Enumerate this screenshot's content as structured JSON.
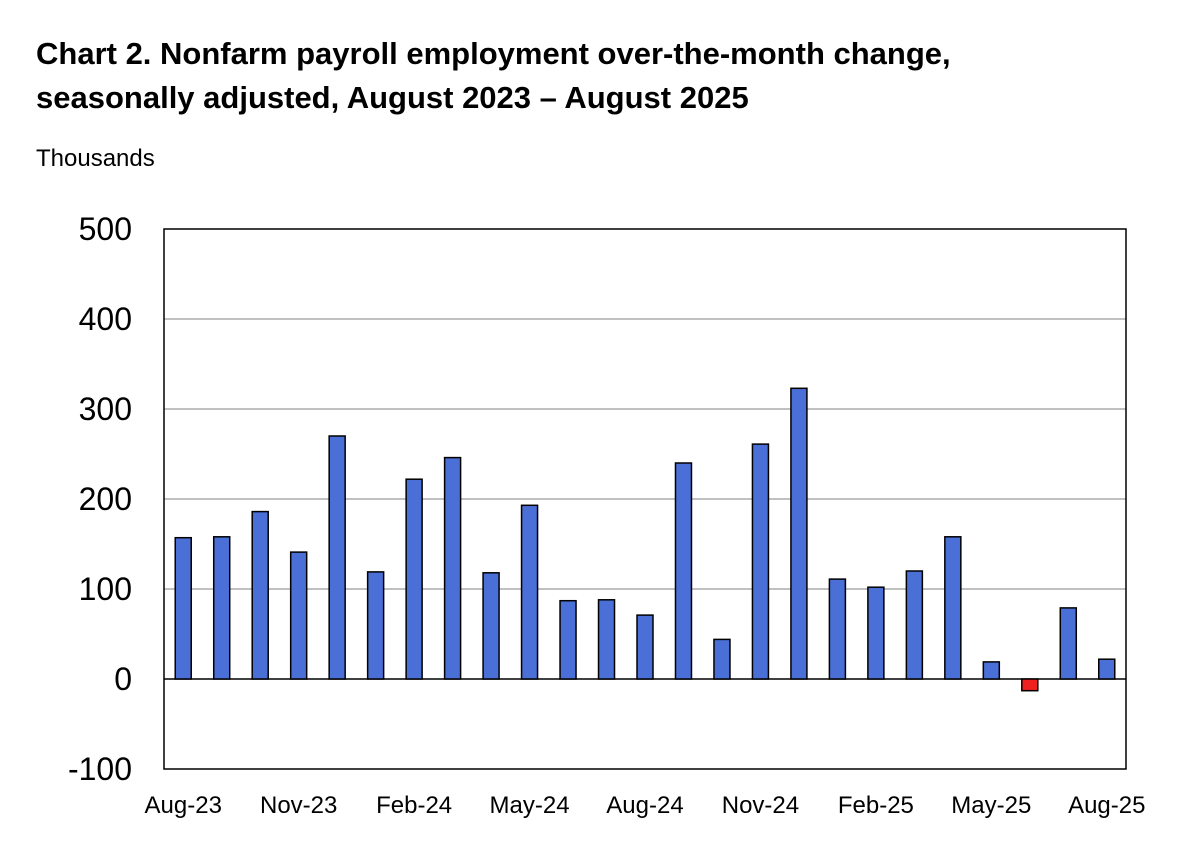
{
  "chart_data": {
    "type": "bar",
    "title_line1": "Chart 2. Nonfarm payroll employment over-the-month change,",
    "title_line2": "seasonally adjusted, August 2023 – August 2025",
    "ylabel": "Thousands",
    "xlabel": "",
    "ylim": [
      -100,
      500
    ],
    "yticks": [
      -100,
      0,
      100,
      200,
      300,
      400,
      500
    ],
    "grid": true,
    "categories": [
      "Aug-23",
      "Sep-23",
      "Oct-23",
      "Nov-23",
      "Dec-23",
      "Jan-24",
      "Feb-24",
      "Mar-24",
      "Apr-24",
      "May-24",
      "Jun-24",
      "Jul-24",
      "Aug-24",
      "Sep-24",
      "Oct-24",
      "Nov-24",
      "Dec-24",
      "Jan-25",
      "Feb-25",
      "Mar-25",
      "Apr-25",
      "May-25",
      "Jun-25",
      "Jul-25",
      "Aug-25"
    ],
    "x_tick_labels": [
      "Aug-23",
      "Nov-23",
      "Feb-24",
      "May-24",
      "Aug-24",
      "Nov-24",
      "Feb-25",
      "May-25",
      "Aug-25"
    ],
    "values": [
      157,
      158,
      186,
      141,
      270,
      119,
      222,
      246,
      118,
      193,
      87,
      88,
      71,
      240,
      44,
      261,
      323,
      111,
      102,
      120,
      158,
      19,
      -13,
      79,
      22
    ],
    "colors": {
      "positive": "#4a6fd6",
      "negative": "#ee2020",
      "gridline": "#808080"
    }
  }
}
